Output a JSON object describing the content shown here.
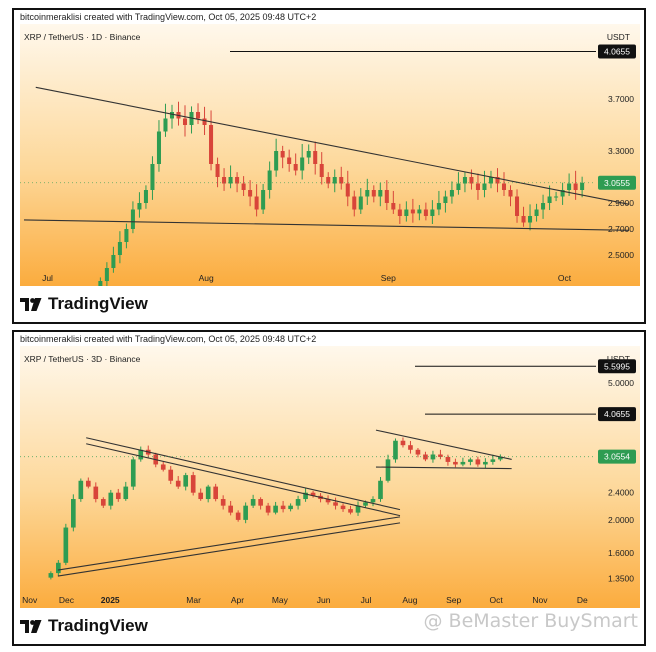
{
  "charts": [
    {
      "caption": "bitcoinmeraklisi created with TradingView.com, Oct 05, 2025 09:48 UTC+2",
      "symbol": "XRP / TetherUS · 1D · Binance",
      "unit": "USDT",
      "brand": "TradingView",
      "xticks": [
        "Jul",
        "Aug",
        "Sep",
        "Oct"
      ],
      "price_ticks": [
        "3.7000",
        "3.3000",
        "2.9000",
        "2.7000",
        "2.5000"
      ],
      "level_labels": [
        "4.0655"
      ],
      "last_price_label": "3.0555"
    },
    {
      "caption": "bitcoinmeraklisi created with TradingView.com, Oct 05, 2025 09:48 UTC+2",
      "symbol": "XRP / TetherUS · 3D · Binance",
      "unit": "USDT",
      "brand": "TradingView",
      "xticks": [
        "Nov",
        "Dec",
        "2025",
        "Mar",
        "Apr",
        "May",
        "Jun",
        "Jul",
        "Aug",
        "Sep",
        "Oct",
        "Nov",
        "De"
      ],
      "price_ticks": [
        "5.0000",
        "2.4000",
        "2.0000",
        "1.6000",
        "1.3500"
      ],
      "level_labels": [
        "5.5995",
        "4.0655"
      ],
      "last_price_label": "3.0554"
    }
  ],
  "watermark": "@ BeMaster BuySmart",
  "chart_data": [
    {
      "type": "candlestick",
      "symbol": "XRP / TetherUS",
      "interval": "1D",
      "exchange": "Binance",
      "x_range": [
        "2025-07-01",
        "2025-10-05"
      ],
      "ylim": [
        2.4,
        4.2
      ],
      "levels": [
        4.0655
      ],
      "last_price": 3.0555,
      "trendlines": [
        {
          "name": "upper",
          "points": [
            [
              "2025-07-03",
              3.79
            ],
            [
              "2025-10-12",
              2.89
            ]
          ]
        },
        {
          "name": "lower",
          "points": [
            [
              "2025-07-01",
              2.77
            ],
            [
              "2025-10-12",
              2.69
            ]
          ]
        }
      ],
      "ohlc_closes_approx": [
        2.3,
        2.4,
        2.5,
        2.6,
        2.7,
        2.85,
        2.9,
        3.0,
        3.2,
        3.45,
        3.55,
        3.6,
        3.55,
        3.5,
        3.6,
        3.55,
        3.5,
        3.2,
        3.1,
        3.05,
        3.1,
        3.05,
        3.0,
        2.95,
        2.85,
        3.0,
        3.15,
        3.3,
        3.25,
        3.2,
        3.15,
        3.25,
        3.3,
        3.2,
        3.1,
        3.05,
        3.1,
        3.05,
        2.95,
        2.85,
        2.95,
        3.0,
        2.95,
        3.0,
        2.9,
        2.85,
        2.8,
        2.85,
        2.82,
        2.85,
        2.8,
        2.85,
        2.9,
        2.95,
        3.0,
        3.05,
        3.1,
        3.05,
        3.0,
        3.05,
        3.1,
        3.05,
        3.0,
        2.95,
        2.8,
        2.75,
        2.8,
        2.85,
        2.9,
        2.95,
        2.95,
        3.0,
        3.05,
        3.0,
        3.0555
      ]
    },
    {
      "type": "candlestick",
      "symbol": "XRP / TetherUS",
      "interval": "3D",
      "exchange": "Binance",
      "x_range": [
        "2024-11-01",
        "2025-12-05"
      ],
      "ylim": [
        1.25,
        6.0
      ],
      "y_scale": "log",
      "levels": [
        5.5995,
        4.0655
      ],
      "last_price": 3.0554,
      "trendlines": [
        {
          "name": "descending-upper",
          "points": [
            [
              "2024-12-15",
              3.4
            ],
            [
              "2025-07-25",
              2.1
            ]
          ]
        },
        {
          "name": "ascending-lower",
          "points": [
            [
              "2024-11-25",
              1.4
            ],
            [
              "2025-07-25",
              2.0
            ]
          ]
        },
        {
          "name": "flag-upper",
          "points": [
            [
              "2025-07-08",
              3.65
            ],
            [
              "2025-10-12",
              3.0
            ]
          ]
        },
        {
          "name": "flag-lower",
          "points": [
            [
              "2025-07-08",
              2.85
            ],
            [
              "2025-10-12",
              2.82
            ]
          ]
        }
      ],
      "ohlc_closes_approx": [
        1.4,
        1.5,
        1.9,
        2.3,
        2.6,
        2.5,
        2.3,
        2.2,
        2.4,
        2.3,
        2.5,
        3.0,
        3.2,
        3.1,
        2.9,
        2.8,
        2.6,
        2.5,
        2.7,
        2.4,
        2.3,
        2.5,
        2.3,
        2.2,
        2.1,
        2.0,
        2.2,
        2.3,
        2.2,
        2.1,
        2.2,
        2.15,
        2.2,
        2.3,
        2.4,
        2.35,
        2.3,
        2.25,
        2.2,
        2.15,
        2.1,
        2.2,
        2.25,
        2.3,
        2.6,
        3.0,
        3.4,
        3.3,
        3.2,
        3.1,
        3.0,
        3.1,
        3.05,
        2.95,
        2.9,
        2.95,
        3.0,
        2.9,
        2.95,
        3.0,
        3.0554
      ]
    }
  ]
}
